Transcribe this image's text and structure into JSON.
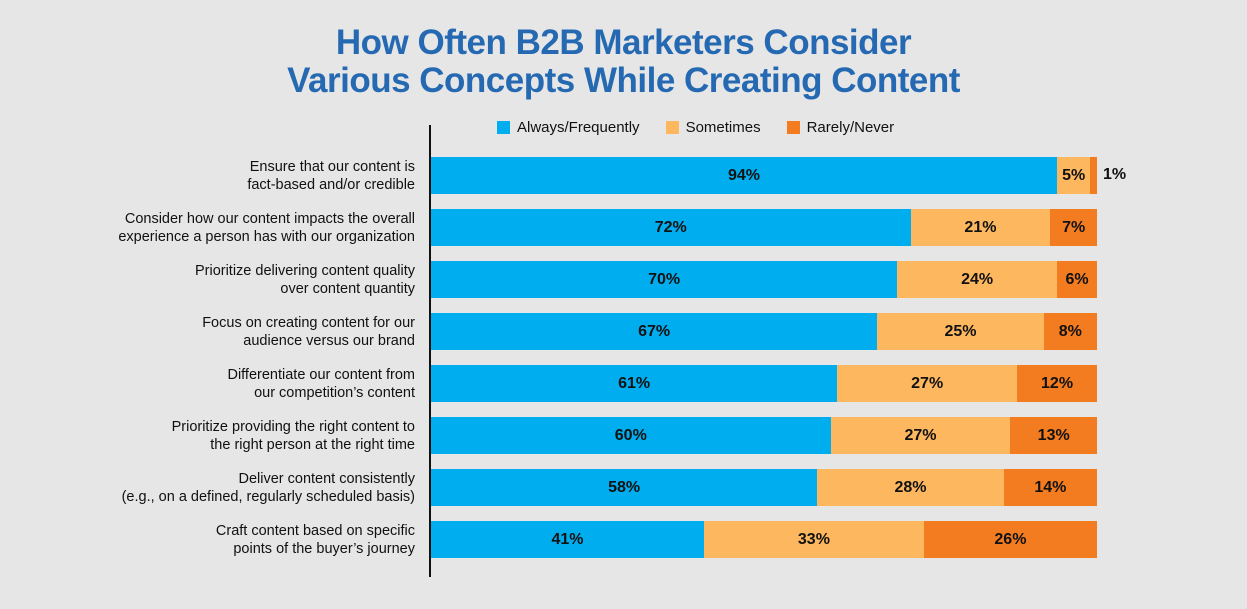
{
  "chart_data": {
    "type": "bar",
    "orientation": "horizontal",
    "stacked": true,
    "title": "How Often B2B Marketers Consider Various Concepts While Creating Content",
    "title_lines": [
      "How Often B2B Marketers Consider",
      "Various Concepts While Creating Content"
    ],
    "legend_position": "top",
    "grid": false,
    "xlim": [
      0,
      100
    ],
    "categories": [
      [
        "Ensure that our content is",
        "fact-based and/or credible"
      ],
      [
        "Consider how our content impacts the overall",
        "experience a person has with our organization"
      ],
      [
        "Prioritize delivering content quality",
        "over content quantity"
      ],
      [
        "Focus on creating content for our",
        "audience versus our brand"
      ],
      [
        "Differentiate our content from",
        "our competition’s content"
      ],
      [
        "Prioritize providing the right content to",
        "the right person at the right time"
      ],
      [
        "Deliver content consistently",
        "(e.g., on a defined, regularly scheduled basis)"
      ],
      [
        "Craft content based on specific",
        "points of the buyer’s journey"
      ]
    ],
    "series": [
      {
        "name": "Always/Frequently",
        "color": "#00aeef",
        "values": [
          94,
          72,
          70,
          67,
          61,
          60,
          58,
          41
        ]
      },
      {
        "name": "Sometimes",
        "color": "#fdb75e",
        "values": [
          5,
          21,
          24,
          25,
          27,
          27,
          28,
          33
        ]
      },
      {
        "name": "Rarely/Never",
        "color": "#f47c20",
        "values": [
          1,
          7,
          6,
          8,
          12,
          13,
          14,
          26
        ]
      }
    ]
  }
}
